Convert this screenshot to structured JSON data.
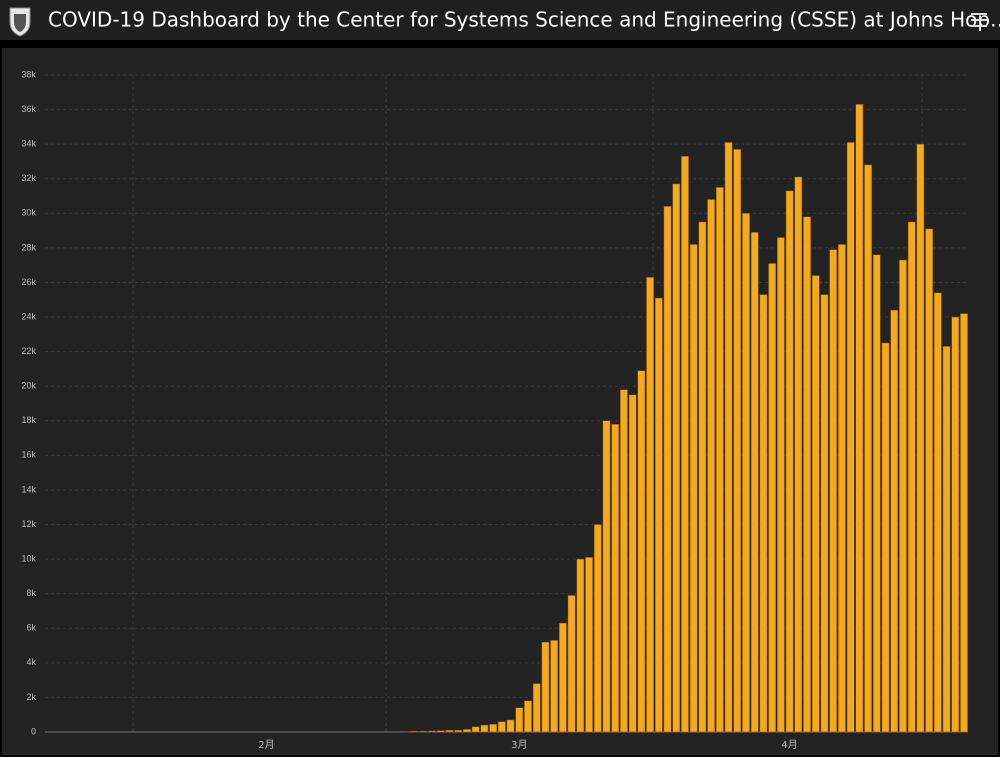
{
  "header": {
    "title": "COVID-19 Dashboard by the Center for Systems Science and Engineering (CSSE) at Johns Hop…"
  },
  "chart_data": {
    "type": "bar",
    "color": "#f5a91d",
    "grid": true,
    "categories": [
      null,
      null,
      null,
      null,
      null,
      null,
      null,
      null,
      null,
      null,
      null,
      null,
      null,
      null,
      null,
      null,
      null,
      null,
      null,
      null,
      null,
      null,
      null,
      null,
      null,
      "2月",
      null,
      null,
      null,
      null,
      null,
      null,
      null,
      null,
      null,
      null,
      null,
      null,
      null,
      null,
      null,
      null,
      null,
      null,
      null,
      null,
      null,
      null,
      null,
      null,
      null,
      null,
      null,
      null,
      "3月",
      null,
      null,
      null,
      null,
      null,
      null,
      null,
      null,
      null,
      null,
      null,
      null,
      null,
      null,
      null,
      null,
      null,
      null,
      null,
      null,
      null,
      null,
      null,
      null,
      null,
      null,
      null,
      null,
      null,
      null,
      "4月",
      null,
      null,
      null,
      null,
      null,
      null,
      null,
      null,
      null,
      null,
      null,
      null,
      null,
      null,
      null,
      null,
      null,
      null,
      null,
      null
    ],
    "values": [
      0,
      0,
      0,
      0,
      0,
      0,
      0,
      0,
      0,
      0,
      0,
      0,
      0,
      0,
      0,
      0,
      0,
      0,
      0,
      0,
      0,
      0,
      0,
      0,
      0,
      0,
      0,
      0,
      0,
      0,
      0,
      0,
      0,
      0,
      0,
      0,
      0,
      0,
      0,
      0,
      0,
      30,
      50,
      50,
      60,
      80,
      100,
      100,
      150,
      300,
      400,
      450,
      600,
      700,
      1400,
      1800,
      2800,
      5200,
      5300,
      6300,
      7900,
      10000,
      10100,
      12000,
      18000,
      17800,
      19800,
      19500,
      20900,
      26300,
      25100,
      30400,
      31700,
      33300,
      28200,
      29500,
      30800,
      31500,
      34100,
      33700,
      30000,
      28900,
      25300,
      27100,
      28600,
      31300,
      32100,
      29800,
      26400,
      25300,
      27900,
      28200,
      34100,
      36300,
      32800,
      27600,
      22500,
      24400,
      27300,
      29500,
      34000,
      29100,
      25400,
      22300,
      24000,
      24200
    ],
    "ylim": [
      0,
      38000
    ],
    "yticks": [
      0,
      {
        "value": 2000,
        "label": "2k"
      },
      {
        "value": 4000,
        "label": "4k"
      },
      {
        "value": 6000,
        "label": "6k"
      },
      {
        "value": 8000,
        "label": "8k"
      },
      {
        "value": 10000,
        "label": "10k"
      },
      {
        "value": 12000,
        "label": "12k"
      },
      {
        "value": 14000,
        "label": "14k"
      },
      {
        "value": 16000,
        "label": "16k"
      },
      {
        "value": 18000,
        "label": "18k"
      },
      {
        "value": 20000,
        "label": "20k"
      },
      {
        "value": 22000,
        "label": "22k"
      },
      {
        "value": 24000,
        "label": "24k"
      },
      {
        "value": 26000,
        "label": "26k"
      },
      {
        "value": 28000,
        "label": "28k"
      },
      {
        "value": 30000,
        "label": "30k"
      },
      {
        "value": 32000,
        "label": "32k"
      },
      {
        "value": 34000,
        "label": "34k"
      },
      {
        "value": 36000,
        "label": "36k"
      },
      {
        "value": 38000,
        "label": "38k"
      }
    ]
  }
}
